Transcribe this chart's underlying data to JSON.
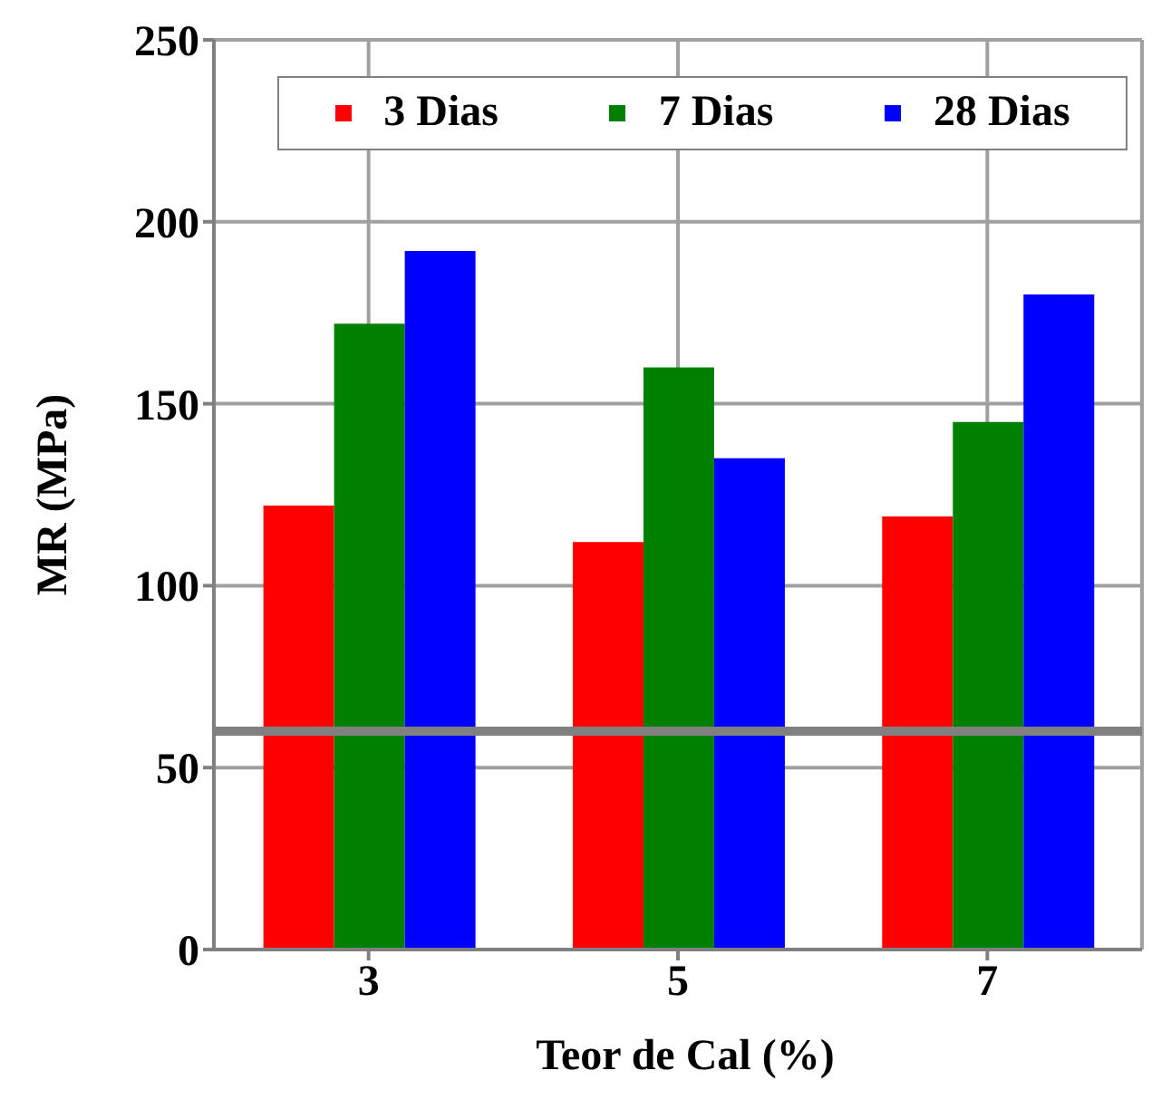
{
  "chart_data": {
    "type": "bar",
    "xlabel": "Teor de Cal (%)",
    "ylabel": "MR (MPa)",
    "categories": [
      "3",
      "5",
      "7"
    ],
    "series": [
      {
        "name": "3 Dias",
        "color": "#ff0000",
        "values": [
          122,
          112,
          119
        ]
      },
      {
        "name": "7 Dias",
        "color": "#008000",
        "values": [
          172,
          160,
          145
        ]
      },
      {
        "name": "28 Dias",
        "color": "#0000ff",
        "values": [
          192,
          135,
          180
        ]
      }
    ],
    "ylim": [
      0,
      250
    ],
    "yticks": [
      0,
      50,
      100,
      150,
      200,
      250
    ],
    "grid": true,
    "legend": "top",
    "ref_lines": [
      {
        "axis": "y",
        "value": 60,
        "color": "#808080"
      }
    ]
  }
}
